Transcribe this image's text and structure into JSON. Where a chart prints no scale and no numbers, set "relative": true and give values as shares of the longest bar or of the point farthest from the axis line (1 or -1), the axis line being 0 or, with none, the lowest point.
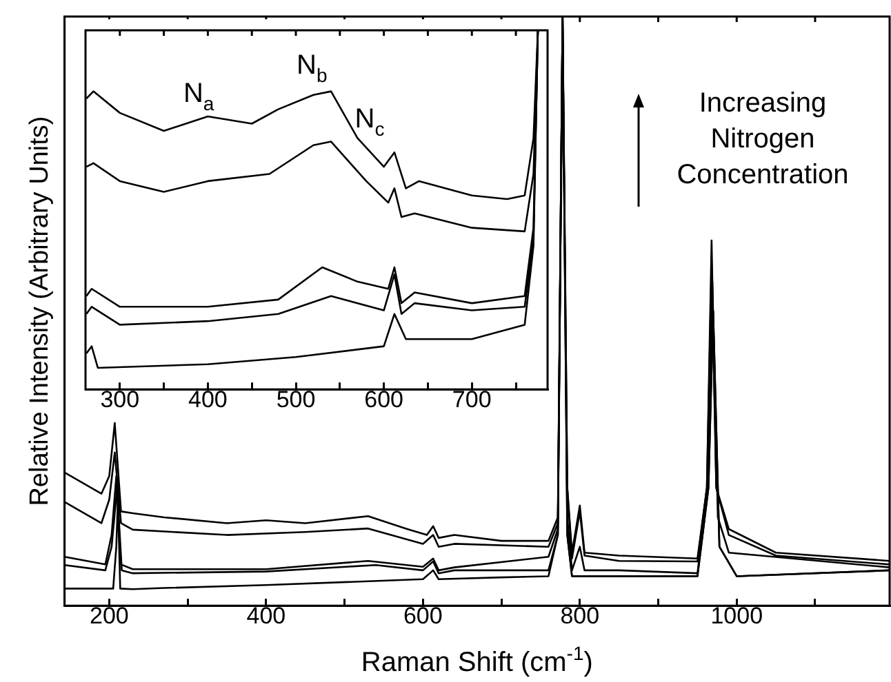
{
  "chart_data": [
    {
      "type": "line",
      "xlabel": "Raman Shift (cm$^{-1}$)",
      "ylabel": "Relative Intensity (Arbitrary Units)",
      "relative": true,
      "marker": "none",
      "xlim": [
        143,
        1195
      ],
      "xticks": [
        200,
        {
          "value": 300,
          "label": null
        },
        400,
        {
          "value": 500,
          "label": null
        },
        600,
        {
          "value": 700,
          "label": null
        },
        800,
        {
          "value": 900,
          "label": null
        },
        1000,
        {
          "value": 1100,
          "label": null
        }
      ],
      "annotations": [
        "Increasing Nitrogen Concentration"
      ],
      "series": [
        {
          "color": "#000000",
          "x": [
            143,
            190,
            200,
            207,
            215,
            230,
            270,
            350,
            400,
            450,
            530,
            580,
            605,
            613,
            620,
            640,
            700,
            760,
            772,
            778,
            784,
            790,
            800,
            806,
            850,
            950,
            962,
            968,
            974,
            990,
            1050,
            1195
          ],
          "values": [
            0.226,
            0.19,
            0.22,
            0.31,
            0.16,
            0.157,
            0.15,
            0.14,
            0.145,
            0.14,
            0.152,
            0.13,
            0.12,
            0.135,
            0.115,
            0.12,
            0.11,
            0.11,
            0.15,
            1,
            0.2,
            0.09,
            0.17,
            0.09,
            0.085,
            0.08,
            0.2,
            0.62,
            0.2,
            0.13,
            0.09,
            0.076
          ]
        },
        {
          "color": "#000000",
          "x": [
            143,
            190,
            200,
            207,
            215,
            230,
            350,
            450,
            530,
            600,
            613,
            620,
            640,
            760,
            772,
            778,
            784,
            790,
            800,
            806,
            850,
            950,
            962,
            968,
            974,
            990,
            1050,
            1195
          ],
          "values": [
            0.176,
            0.14,
            0.18,
            0.26,
            0.14,
            0.129,
            0.12,
            0.125,
            0.131,
            0.105,
            0.12,
            0.1,
            0.105,
            0.1,
            0.14,
            1,
            0.2,
            0.08,
            0.16,
            0.085,
            0.076,
            0.075,
            0.2,
            0.58,
            0.2,
            0.12,
            0.085,
            0.07
          ]
        },
        {
          "color": "#000000",
          "x": [
            143,
            195,
            203,
            209,
            215,
            230,
            400,
            530,
            600,
            613,
            620,
            640,
            760,
            772,
            778,
            784,
            790,
            800,
            806,
            850,
            950,
            963,
            969,
            976,
            990,
            1195
          ],
          "values": [
            0.083,
            0.07,
            0.12,
            0.22,
            0.07,
            0.062,
            0.062,
            0.076,
            0.066,
            0.08,
            0.06,
            0.065,
            0.083,
            0.13,
            1,
            0.15,
            0.06,
            0.1,
            0.06,
            0.06,
            0.055,
            0.2,
            0.55,
            0.15,
            0.09,
            0.065
          ]
        },
        {
          "color": "#000000",
          "x": [
            143,
            195,
            203,
            210,
            216,
            230,
            400,
            540,
            600,
            613,
            620,
            640,
            760,
            772,
            778,
            784,
            790,
            850,
            950,
            964,
            970,
            978,
            1000,
            1195
          ],
          "values": [
            0.069,
            0.06,
            0.1,
            0.2,
            0.06,
            0.055,
            0.058,
            0.069,
            0.06,
            0.075,
            0.055,
            0.06,
            0.06,
            0.12,
            1,
            0.12,
            0.05,
            0.05,
            0.05,
            0.2,
            0.5,
            0.1,
            0.05,
            0.06
          ]
        },
        {
          "color": "#000000",
          "x": [
            143,
            205,
            209,
            211,
            214,
            230,
            270,
            400,
            600,
            613,
            620,
            700,
            760,
            772,
            778,
            784,
            790,
            850,
            950,
            964,
            970,
            978,
            1000,
            1195
          ],
          "values": [
            0.029,
            0.029,
            0.1,
            0.18,
            0.029,
            0.028,
            0.03,
            0.035,
            0.045,
            0.06,
            0.045,
            0.048,
            0.05,
            0.12,
            1,
            0.12,
            0.05,
            0.05,
            0.05,
            0.2,
            0.5,
            0.1,
            0.05,
            0.06
          ]
        }
      ]
    },
    {
      "type": "line",
      "relative": true,
      "marker": "none",
      "xlim": [
        261,
        786
      ],
      "xticks": [
        300,
        {
          "value": 350,
          "label": null
        },
        400,
        {
          "value": 450,
          "label": null
        },
        500,
        {
          "value": 550,
          "label": null
        },
        600,
        {
          "value": 650,
          "label": null
        },
        700,
        {
          "value": 750,
          "label": null
        }
      ],
      "annotations": [
        "N$_{a}$",
        "N$_{b}$",
        "N$_{c}$"
      ],
      "series": [
        {
          "color": "#000000",
          "x": [
            262,
            270,
            300,
            350,
            400,
            450,
            480,
            520,
            540,
            570,
            600,
            612,
            625,
            640,
            700,
            740,
            760,
            770,
            775
          ],
          "values": [
            0.81,
            0.83,
            0.77,
            0.72,
            0.76,
            0.74,
            0.78,
            0.82,
            0.83,
            0.7,
            0.62,
            0.66,
            0.56,
            0.58,
            0.54,
            0.53,
            0.54,
            0.7,
            1
          ]
        },
        {
          "color": "#000000",
          "x": [
            262,
            270,
            300,
            350,
            400,
            470,
            520,
            540,
            580,
            605,
            612,
            620,
            635,
            700,
            760,
            770,
            775
          ],
          "values": [
            0.62,
            0.63,
            0.58,
            0.55,
            0.58,
            0.6,
            0.68,
            0.69,
            0.58,
            0.52,
            0.56,
            0.48,
            0.49,
            0.45,
            0.44,
            0.6,
            1
          ]
        },
        {
          "color": "#000000",
          "x": [
            262,
            268,
            300,
            400,
            480,
            530,
            570,
            605,
            612,
            620,
            635,
            700,
            760,
            770,
            775
          ],
          "values": [
            0.26,
            0.28,
            0.23,
            0.23,
            0.25,
            0.34,
            0.3,
            0.28,
            0.34,
            0.24,
            0.27,
            0.24,
            0.26,
            0.45,
            1
          ]
        },
        {
          "color": "#000000",
          "x": [
            262,
            268,
            300,
            400,
            480,
            540,
            600,
            612,
            620,
            635,
            700,
            760,
            770,
            775
          ],
          "values": [
            0.21,
            0.23,
            0.18,
            0.19,
            0.21,
            0.26,
            0.22,
            0.32,
            0.21,
            0.24,
            0.22,
            0.23,
            0.42,
            1
          ]
        },
        {
          "color": "#000000",
          "x": [
            262,
            268,
            275,
            400,
            500,
            600,
            612,
            625,
            700,
            760,
            770,
            775
          ],
          "values": [
            0.1,
            0.12,
            0.06,
            0.07,
            0.09,
            0.12,
            0.21,
            0.14,
            0.14,
            0.18,
            0.4,
            1
          ]
        }
      ]
    }
  ]
}
